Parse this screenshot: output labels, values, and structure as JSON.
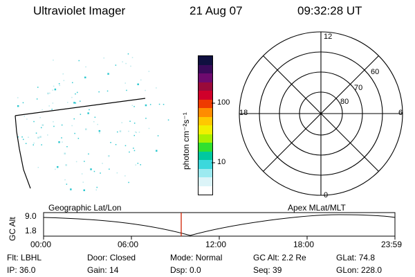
{
  "header": {
    "instrument": "Ultraviolet Imager",
    "date": "21 Aug 07",
    "time": "09:32:28 UT"
  },
  "colorbar": {
    "unit_label": "photon cm⁻²s⁻¹",
    "tick_labels": [
      "100",
      "10"
    ],
    "colors": [
      "#101040",
      "#3a0a5a",
      "#6e0a6e",
      "#9a0a3a",
      "#d0002a",
      "#ee3a00",
      "#ff8c00",
      "#ffc800",
      "#f0f000",
      "#a8f000",
      "#30e030",
      "#00c8a0",
      "#3cd8dc",
      "#9ceaf0",
      "#dcf4f8",
      "#ffffff"
    ]
  },
  "polar_plot": {
    "mlt_labels": {
      "top": "12",
      "left": "18",
      "right": "6",
      "bottom": "0"
    },
    "lat_labels": [
      "60",
      "70",
      "80"
    ]
  },
  "altitude_plot": {
    "axis_title": "GC Alt",
    "y_ticks": [
      "9.0",
      "1.8"
    ],
    "left_label": "Geographic Lat/Lon",
    "right_label": "Apex  MLat/MLT",
    "time_ticks": [
      "00:00",
      "06:00",
      "12:00",
      "18:00",
      "23:59"
    ]
  },
  "status": {
    "row1": [
      {
        "label": "Flt:",
        "value": "LBHL"
      },
      {
        "label": "Door:",
        "value": "Closed"
      },
      {
        "label": "Mode:",
        "value": "Normal"
      },
      {
        "label": "GC Alt:",
        "value": "2.2 Re"
      },
      {
        "label": "GLat:",
        "value": "74.8"
      }
    ],
    "row2": [
      {
        "label": "IP:",
        "value": "36.0"
      },
      {
        "label": "Gain:",
        "value": "14"
      },
      {
        "label": "Dsp:",
        "value": "0.0"
      },
      {
        "label": "Seq:",
        "value": "39"
      },
      {
        "label": "GLon:",
        "value": "228.0"
      }
    ]
  },
  "colors": {
    "marker": "#d02000",
    "dots": "#2ec8d0"
  }
}
